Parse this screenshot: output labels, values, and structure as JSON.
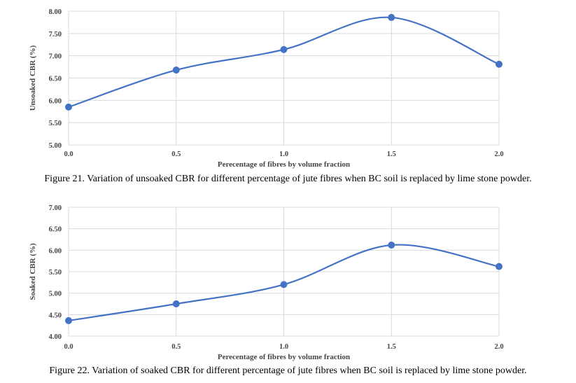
{
  "chart_data": [
    {
      "type": "line",
      "x": [
        0.0,
        0.5,
        1.0,
        1.5,
        2.0
      ],
      "x_tick_labels": [
        "0.0",
        "0.5",
        "1.0",
        "1.5",
        "2.0"
      ],
      "y_tick_labels": [
        "5.00",
        "5.50",
        "6.00",
        "6.50",
        "7.00",
        "7.50",
        "8.00"
      ],
      "series": [
        {
          "values": [
            5.85,
            6.68,
            7.14,
            7.86,
            6.81
          ]
        }
      ],
      "xlabel": "Perecentage of fibres by volume fraction",
      "ylabel": "Unsoaked CBR (%)",
      "xlim": [
        0,
        2
      ],
      "ylim": [
        5.0,
        8.0
      ],
      "grid": true,
      "smooth": true,
      "line_color": "#4472c4",
      "caption": "Figure 21. Variation of unsoaked CBR for different percentage of jute fibres when BC soil is replaced by lime stone powder."
    },
    {
      "type": "line",
      "x": [
        0.0,
        0.5,
        1.0,
        1.5,
        2.0
      ],
      "x_tick_labels": [
        "0.0",
        "0.5",
        "1.0",
        "1.5",
        "2.0"
      ],
      "y_tick_labels": [
        "4.00",
        "4.50",
        "5.00",
        "5.50",
        "6.00",
        "6.50",
        "7.00"
      ],
      "series": [
        {
          "values": [
            4.36,
            4.75,
            5.2,
            6.12,
            5.62
          ]
        }
      ],
      "xlabel": "Perecentage of fibres by volume fraction",
      "ylabel": "Soaked CBR (%)",
      "xlim": [
        0,
        2
      ],
      "ylim": [
        4.0,
        7.0
      ],
      "grid": true,
      "smooth": true,
      "line_color": "#4472c4",
      "caption": "Figure 22. Variation of soaked CBR for different percentage of jute fibres when BC soil is replaced by lime stone powder."
    }
  ]
}
